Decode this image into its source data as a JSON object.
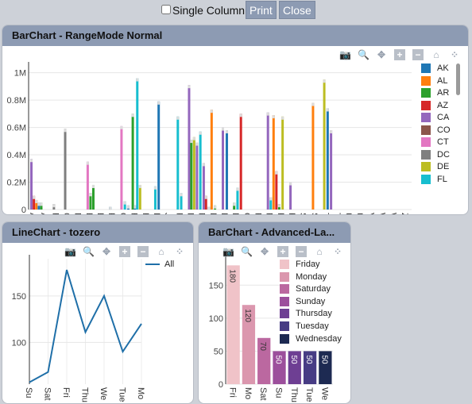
{
  "toolbar": {
    "single_column_label": "Single Column",
    "print_label": "Print",
    "close_label": "Close"
  },
  "panels": {
    "bar1": {
      "title": "BarChart - RangeMode Normal"
    },
    "line": {
      "title": "LineChart - tozero"
    },
    "bar2": {
      "title": "BarChart - Advanced-La..."
    }
  },
  "modebar_icons": [
    "camera-icon",
    "zoom-icon",
    "pan-icon",
    "zoom-in-icon",
    "zoom-out-icon",
    "home-icon",
    "spike-icon"
  ],
  "chart_data": [
    {
      "type": "bar",
      "title": "",
      "categories": [
        "Afvoc",
        "Avnit",
        "Binej",
        "Cewf",
        "Diazi",
        "Ehret",
        "Evbu",
        "Feisu",
        "Geuc",
        "Huak",
        "Huw",
        "Itvju",
        "Jimol",
        "Kivp",
        "Lilbe",
        "Manc",
        "Mojt",
        "Munv",
        "Nevz",
        "Onek",
        "Pikon",
        "Potid",
        "Rashi",
        "Rutor",
        "Siblz",
        "Sudo",
        "Tinaa",
        "Tuzis",
        "Ufoe",
        "Uvul",
        "Vohu",
        "Wenj",
        "Wivk",
        "Zetdc"
      ],
      "y_ticks": [
        "0",
        "0.2M",
        "0.4M",
        "0.6M",
        "0.8M",
        "1M"
      ],
      "ylim": [
        0,
        1050000
      ],
      "legend": [
        "AK",
        "AL",
        "AR",
        "AZ",
        "CA",
        "CO",
        "CT",
        "DC",
        "DE",
        "FL"
      ],
      "colors": [
        "#1f77b4",
        "#ff7f0e",
        "#2ca02c",
        "#d62728",
        "#9467bd",
        "#8c564b",
        "#e377c2",
        "#7f7f7f",
        "#bcbd22",
        "#17becf"
      ],
      "bars": [
        [
          0,
          4,
          370000
        ],
        [
          0.22,
          3,
          100000
        ],
        [
          0.44,
          1,
          70000
        ],
        [
          0.66,
          0,
          50000
        ],
        [
          0.88,
          2,
          50000
        ],
        [
          2,
          7,
          40000
        ],
        [
          3,
          7,
          590000
        ],
        [
          5,
          6,
          350000
        ],
        [
          5.25,
          2,
          120000
        ],
        [
          5.5,
          2,
          180000
        ],
        [
          7,
          0,
          20000
        ],
        [
          8,
          6,
          610000
        ],
        [
          8.3,
          9,
          60000
        ],
        [
          8.6,
          0,
          30000
        ],
        [
          9,
          2,
          700000
        ],
        [
          9.2,
          0,
          30000
        ],
        [
          9.4,
          9,
          960000
        ],
        [
          9.65,
          8,
          180000
        ],
        [
          11,
          9,
          170000
        ],
        [
          11.3,
          0,
          790000
        ],
        [
          13,
          9,
          680000
        ],
        [
          13.3,
          9,
          120000
        ],
        [
          14,
          4,
          910000
        ],
        [
          14.2,
          2,
          510000
        ],
        [
          14.45,
          8,
          530000
        ],
        [
          14.7,
          4,
          490000
        ],
        [
          15,
          9,
          570000
        ],
        [
          15.3,
          4,
          340000
        ],
        [
          15.5,
          3,
          100000
        ],
        [
          15.75,
          0,
          20000
        ],
        [
          16,
          1,
          730000
        ],
        [
          16.3,
          2,
          30000
        ],
        [
          17,
          4,
          600000
        ],
        [
          17.35,
          0,
          580000
        ],
        [
          18,
          2,
          50000
        ],
        [
          18.3,
          9,
          160000
        ],
        [
          18.6,
          3,
          700000
        ],
        [
          21,
          4,
          710000
        ],
        [
          21.25,
          9,
          90000
        ],
        [
          21.5,
          1,
          690000
        ],
        [
          21.75,
          3,
          280000
        ],
        [
          22,
          2,
          40000
        ],
        [
          22.3,
          8,
          680000
        ],
        [
          23,
          4,
          200000
        ],
        [
          25,
          1,
          780000
        ],
        [
          26,
          8,
          950000
        ],
        [
          26.3,
          0,
          740000
        ],
        [
          26.6,
          4,
          580000
        ]
      ]
    },
    {
      "type": "line",
      "title": "",
      "categories": [
        "Sunday",
        "Saturday",
        "Friday",
        "Thursday",
        "Wednesday",
        "Tuesday",
        "Monday"
      ],
      "tick_labels": [
        "Su",
        "Sat",
        "Fri",
        "Thu",
        "We",
        "Tue",
        "Mo"
      ],
      "series": [
        {
          "name": "All",
          "values": [
            57,
            68,
            178,
            111,
            150,
            90,
            120
          ]
        }
      ],
      "y_ticks": [
        100,
        150
      ],
      "ylim": [
        55,
        190
      ],
      "color": "#1f6fa8"
    },
    {
      "type": "bar",
      "title": "",
      "categories": [
        "Friday",
        "Monday",
        "Saturday",
        "Sunday",
        "Thursday",
        "Tuesday",
        "Wednesday"
      ],
      "tick_labels": [
        "Fri",
        "Mo",
        "Sat",
        "Su",
        "Thu",
        "Tue",
        "We"
      ],
      "values": [
        180,
        120,
        70,
        50,
        50,
        50,
        50
      ],
      "y_ticks": [
        0,
        50,
        100,
        150
      ],
      "ylim": [
        0,
        190
      ],
      "legend": [
        "Friday",
        "Monday",
        "Saturday",
        "Sunday",
        "Thursday",
        "Tuesday",
        "Wednesday"
      ],
      "colors": [
        "#f0c3c8",
        "#db97ae",
        "#bb68a0",
        "#9c4f9c",
        "#6e3f93",
        "#473c84",
        "#1d2a52"
      ]
    }
  ]
}
